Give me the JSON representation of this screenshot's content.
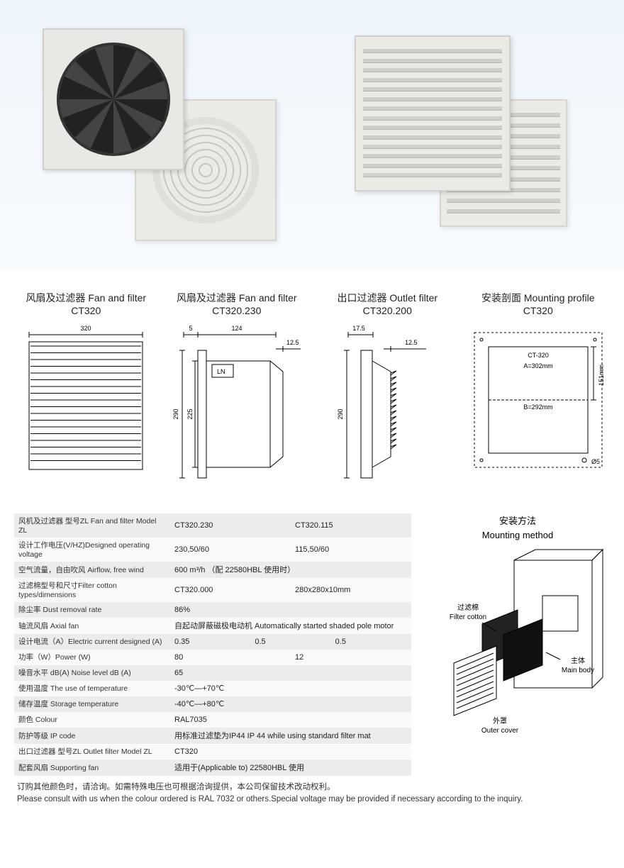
{
  "drawings": [
    {
      "title_cn": "风扇及过滤器",
      "title_en": "Fan and filter",
      "model": "CT320",
      "outer_w": "320"
    },
    {
      "title_cn": "风扇及过滤器",
      "title_en": "Fan and filter",
      "model": "CT320.230",
      "d1": "5",
      "d2": "124",
      "d3": "12.5",
      "h1": "290",
      "h2": "225",
      "ln": "LN"
    },
    {
      "title_cn": "出口过滤器",
      "title_en": "Outlet filter",
      "model": "CT320.200",
      "d1": "17.5",
      "d2": "12.5",
      "h1": "290"
    },
    {
      "title_cn": "安装剖面",
      "title_en": "Mounting profile",
      "model": "CT320",
      "ct": "CT-320",
      "a": "A=302mm",
      "b": "B=292mm",
      "h": "151mm",
      "hole": "Ø5"
    }
  ],
  "spec_rows": [
    {
      "label": "风机及过滤器  型号ZL  Fan and filter  Model ZL",
      "v1": "CT320.230",
      "v2": "CT320.115",
      "v3": ""
    },
    {
      "label": "设计工作电压(V/HZ)Designed operating voltage",
      "v1": "230,50/60",
      "v2": "115,50/60",
      "v3": ""
    },
    {
      "label": "空气流量，自由吹风 Airflow, free wind",
      "v1": "600 m³/h   （配  22580HBL   使用时）",
      "v2": "",
      "v3": ""
    },
    {
      "label": "过滤棉型号和尺寸Filter cotton types/dimensions",
      "v1": "            CT320.000",
      "v2": "280x280x10mm",
      "v3": ""
    },
    {
      "label": "除尘率 Dust removal rate",
      "v1": "86%",
      "v2": "",
      "v3": ""
    },
    {
      "label": "轴流风扇 Axial fan",
      "v1": "自起动屏蔽磁极电动机  Automatically started shaded pole motor",
      "v2": "",
      "v3": ""
    },
    {
      "label": "设计电流（A）Electric current designed (A)",
      "v1": "0.35",
      "v2": "0.5",
      "v3": "0.5"
    },
    {
      "label": "功率（W）Power (W)",
      "v1": "80",
      "v2": "12",
      "v3": ""
    },
    {
      "label": "噪音水平 dB(A) Noise level dB (A)",
      "v1": "65",
      "v2": "",
      "v3": ""
    },
    {
      "label": "使用温度 The use of temperature",
      "v1": "-30℃—+70℃",
      "v2": "",
      "v3": ""
    },
    {
      "label": "储存温度 Storage temperature",
      "v1": "-40℃—+80℃",
      "v2": "",
      "v3": ""
    },
    {
      "label": "颜色 Colour",
      "v1": "RAL7035",
      "v2": "",
      "v3": ""
    },
    {
      "label": "防护等级 IP code",
      "v1": "用标准过滤垫为IP44  IP 44 while using standard filter mat",
      "v2": "",
      "v3": ""
    },
    {
      "label": "出口过滤器 型号ZL  Outlet filter  Model ZL",
      "v1": "CT320",
      "v2": "",
      "v3": ""
    },
    {
      "label": "配套风扇 Supporting fan",
      "v1": "适用于(Applicable to)  22580HBL  使用",
      "v2": "",
      "v3": ""
    }
  ],
  "mounting": {
    "title_cn": "安装方法",
    "title_en": "Mounting method",
    "filter_cn": "过滤棉",
    "filter_en": "Filter cotton",
    "body_cn": "主体",
    "body_en": "Main body",
    "cover_cn": "外罩",
    "cover_en": "Outer cover"
  },
  "footnote": {
    "cn": "订购其他颜色时，请洽询。如需特殊电压也可根据洽询提供，本公司保留技术改动权利。",
    "en": "Please consult with us when the colour ordered is RAL 7032 or others.Special voltage may be provided if necessary according to the inquiry."
  },
  "colors": {
    "hero_bg_top": "#eef5fb",
    "panel": "#e8e8e4",
    "row_odd": "#ececec"
  }
}
